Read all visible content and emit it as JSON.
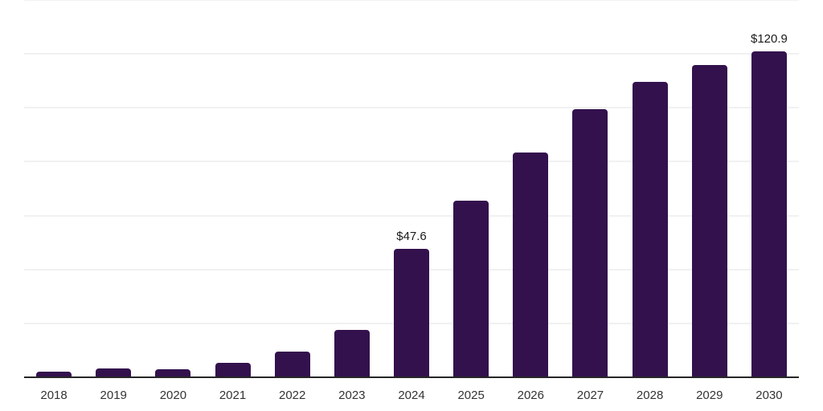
{
  "colors": {
    "background": "#ffffff",
    "bar": "#33114d",
    "axis_line": "#262626",
    "gridline": "#f1f1f1",
    "tick_label": "#333333",
    "value_label": "#1a1a1a"
  },
  "chart_data": {
    "type": "bar",
    "title": "",
    "xlabel": "",
    "ylabel": "",
    "categories": [
      "2018",
      "2019",
      "2020",
      "2021",
      "2022",
      "2023",
      "2024",
      "2025",
      "2026",
      "2027",
      "2028",
      "2029",
      "2030"
    ],
    "values": [
      2.2,
      3.3,
      3.1,
      5.5,
      9.5,
      17.7,
      47.6,
      65.4,
      83.4,
      99.4,
      109.7,
      116.0,
      120.9
    ],
    "value_labels": [
      {
        "category": "2024",
        "text": "$47.6"
      },
      {
        "category": "2030",
        "text": "$120.9"
      }
    ],
    "ylim": [
      0,
      140
    ],
    "grid_step": 20,
    "grid": "horizontal-only",
    "y_tick_labels_visible": false,
    "legend": "none"
  }
}
